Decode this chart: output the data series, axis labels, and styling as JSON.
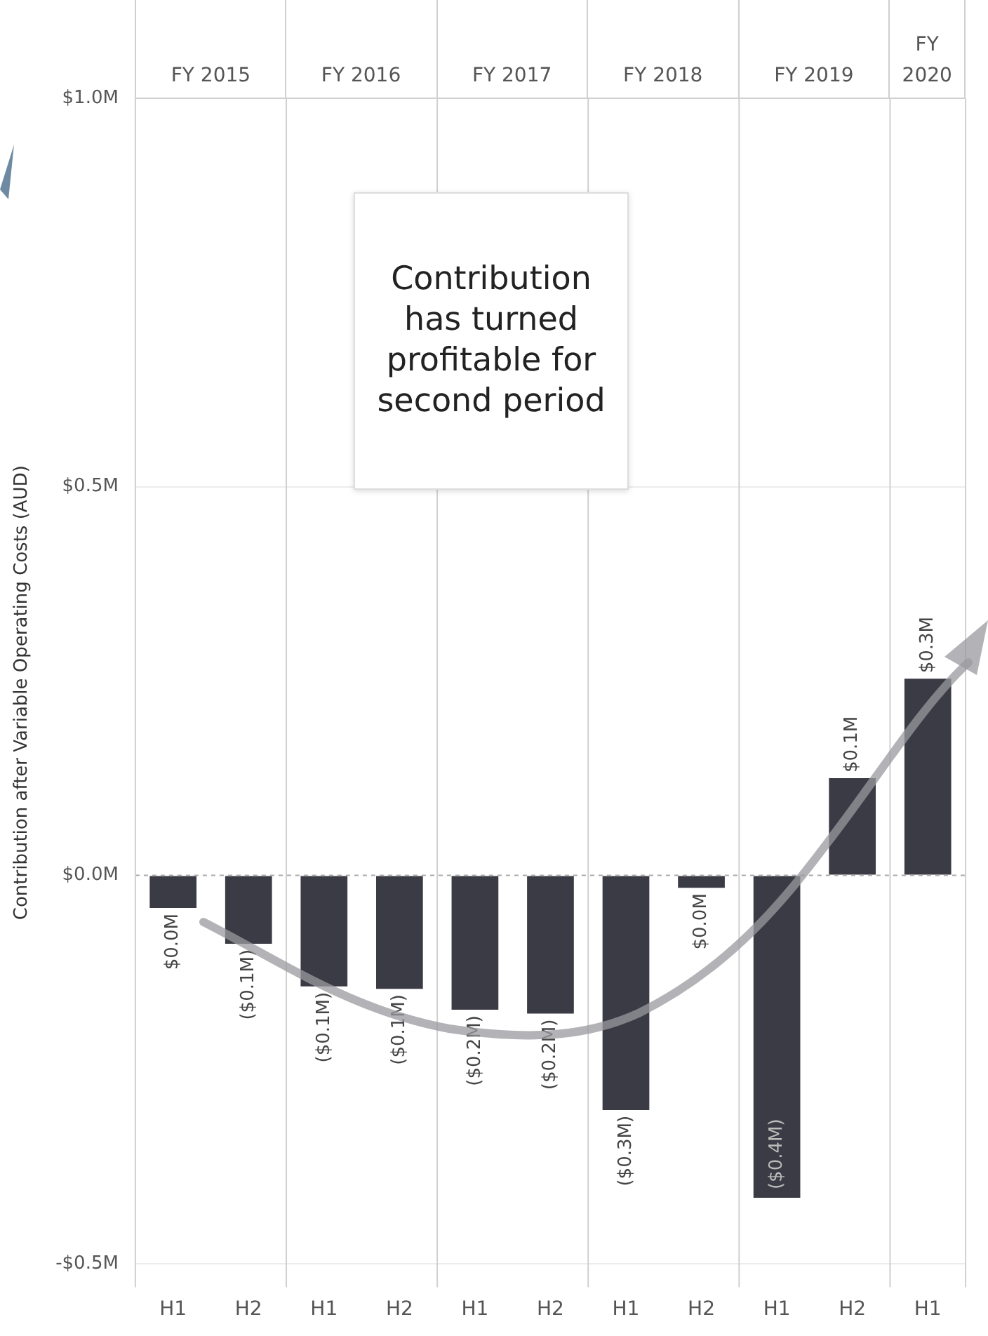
{
  "chart_data": {
    "type": "bar",
    "ylabel": "Contribution after Variable Operating Costs (AUD)",
    "categories": [
      "H1",
      "H2",
      "H1",
      "H2",
      "H1",
      "H2",
      "H1",
      "H2",
      "H1",
      "H2",
      "H1"
    ],
    "series": [
      {
        "color": "#3a3b44",
        "values": [
          -0.042,
          -0.088,
          -0.143,
          -0.146,
          -0.173,
          -0.178,
          -0.302,
          -0.016,
          -0.415,
          0.125,
          0.253
        ],
        "value_labels": [
          "$0.0M",
          "($0.1M)",
          "($0.1M)",
          "($0.1M)",
          "($0.2M)",
          "($0.2M)",
          "($0.3M)",
          "$0.0M",
          "($0.4M)",
          "$0.1M",
          "$0.3M"
        ]
      }
    ],
    "ylim": [
      -0.53,
      1.0
    ],
    "yticks": [
      {
        "value": -0.5,
        "label": "-$0.5M"
      },
      {
        "value": 0,
        "label": "$0.0M"
      },
      {
        "value": 0.5,
        "label": "$0.5M"
      },
      {
        "value": 1,
        "label": "$1.0M"
      }
    ],
    "grid": "y",
    "legend": false,
    "ref_lines": [
      {
        "axis": "y",
        "value": 0,
        "color": "#aaaaaa",
        "line_style": "dashed"
      }
    ],
    "annotations": [
      "FY 2015",
      "FY 2016",
      "FY 2017",
      "FY 2018",
      "FY 2019",
      "FY 2020",
      "Contribution has turned profitable for second period"
    ]
  }
}
